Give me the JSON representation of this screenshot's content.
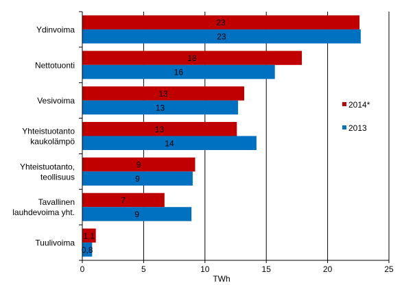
{
  "chart_data": {
    "type": "bar",
    "orientation": "horizontal",
    "categories": [
      [
        "Ydinvoima"
      ],
      [
        "Nettotuonti"
      ],
      [
        "Vesivoima"
      ],
      [
        "Yhteistuotanto",
        "kaukolämpö"
      ],
      [
        "Yhteistuotanto,",
        "teollisuus"
      ],
      [
        "Tavallinen",
        "lauhdevoima yht."
      ],
      [
        "Tuulivoima"
      ]
    ],
    "series": [
      {
        "name": "2014*",
        "color": "#C00000",
        "values": [
          22.6,
          17.9,
          13.2,
          12.6,
          9.2,
          6.7,
          1.1
        ],
        "labels": [
          "23",
          "18",
          "13",
          "13",
          "9",
          "7",
          "1,1"
        ]
      },
      {
        "name": "2013",
        "color": "#0070C0",
        "values": [
          22.7,
          15.7,
          12.7,
          14.2,
          9.0,
          8.9,
          0.8
        ],
        "labels": [
          "23",
          "16",
          "13",
          "14",
          "9",
          "9",
          "0,8"
        ]
      }
    ],
    "xlabel": "TWh",
    "xlim": [
      0,
      25
    ],
    "xticks": [
      "0",
      "5",
      "10",
      "15",
      "20",
      "25"
    ],
    "grid": true,
    "legend_position": "right"
  }
}
